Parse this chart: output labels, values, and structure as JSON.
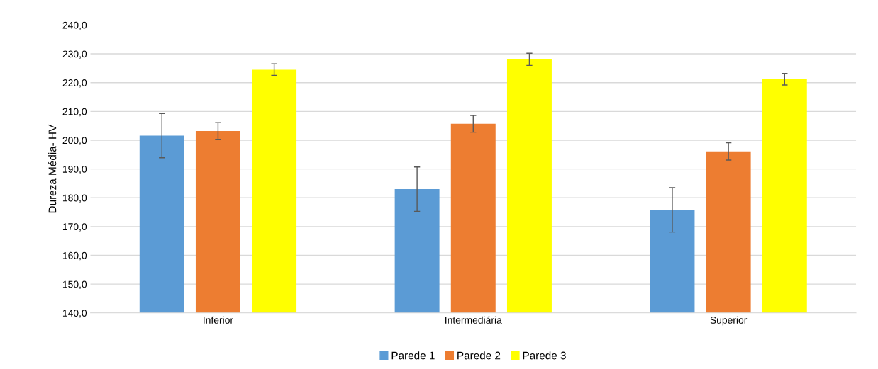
{
  "chart_data": {
    "type": "bar",
    "ylabel": "Dureza Média- HV",
    "categories": [
      "Inferior",
      "Intermediária",
      "Superior"
    ],
    "series": [
      {
        "name": "Parede 1",
        "color": "#5b9bd5",
        "values": [
          201.6,
          183.0,
          175.8
        ],
        "errors": [
          7.7,
          7.7,
          7.7
        ]
      },
      {
        "name": "Parede 2",
        "color": "#ed7d31",
        "values": [
          203.2,
          205.7,
          196.1
        ],
        "errors": [
          2.9,
          2.9,
          3.0
        ]
      },
      {
        "name": "Parede 3",
        "color": "#ffff00",
        "values": [
          224.5,
          228.1,
          221.2
        ],
        "errors": [
          2.0,
          2.1,
          2.0
        ]
      }
    ],
    "ylim": [
      140,
      240
    ],
    "yticks": [
      {
        "value": 140,
        "label": "140,0"
      },
      {
        "value": 150,
        "label": "150,0"
      },
      {
        "value": 160,
        "label": "160,0"
      },
      {
        "value": 170,
        "label": "170,0"
      },
      {
        "value": 180,
        "label": "180,0"
      },
      {
        "value": 190,
        "label": "190,0"
      },
      {
        "value": 200,
        "label": "200,0"
      },
      {
        "value": 210,
        "label": "210,0"
      },
      {
        "value": 220,
        "label": "220,0"
      },
      {
        "value": 230,
        "label": "230,0"
      },
      {
        "value": 240,
        "label": "240,0"
      }
    ],
    "grid": "y",
    "legend": "bottom"
  }
}
